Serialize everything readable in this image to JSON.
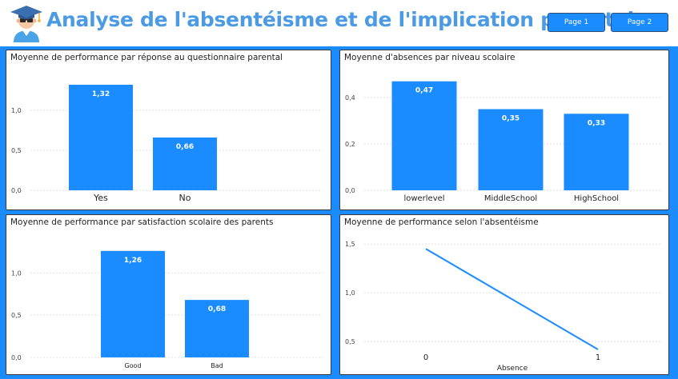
{
  "header": {
    "title": "Analyse de l'absentéisme et de l'implication parentale",
    "logo_icon": "graduate-student-icon",
    "buttons": [
      {
        "label": "Page 1"
      },
      {
        "label": "Page 2"
      }
    ]
  },
  "colors": {
    "accent": "#1a8cff",
    "title": "#4a9be4",
    "bar": "#1a8cff",
    "line": "#1a8cff",
    "gridline": "#e0e0e0"
  },
  "chart_data": [
    {
      "type": "bar",
      "title": "Moyenne de performance par réponse au questionnaire parental",
      "categories": [
        "Yes",
        "No"
      ],
      "values": [
        1.32,
        0.66
      ],
      "data_labels": [
        "1,32",
        "0,66"
      ],
      "yticks": [
        {
          "value": 0,
          "label": "0,0"
        },
        {
          "value": 0.5,
          "label": "0,5"
        },
        {
          "value": 1.0,
          "label": "1,0"
        }
      ],
      "ylim": [
        0,
        1.45
      ],
      "grid": true
    },
    {
      "type": "bar",
      "title": "Moyenne d'absences par niveau scolaire",
      "categories": [
        "lowerlevel",
        "MiddleSchool",
        "HighSchool"
      ],
      "values": [
        0.47,
        0.35,
        0.33
      ],
      "data_labels": [
        "0,47",
        "0,35",
        "0,33"
      ],
      "yticks": [
        {
          "value": 0,
          "label": "0,0"
        },
        {
          "value": 0.2,
          "label": "0,2"
        },
        {
          "value": 0.4,
          "label": "0,4"
        }
      ],
      "ylim": [
        0,
        0.5
      ],
      "grid": true
    },
    {
      "type": "bar",
      "title": "Moyenne de performance par satisfaction scolaire des parents",
      "categories": [
        "Good",
        "Bad"
      ],
      "values": [
        1.26,
        0.68
      ],
      "data_labels": [
        "1,26",
        "0,68"
      ],
      "yticks": [
        {
          "value": 0,
          "label": "0,0"
        },
        {
          "value": 0.5,
          "label": "0,5"
        },
        {
          "value": 1.0,
          "label": "1,0"
        }
      ],
      "ylim": [
        0,
        1.4
      ],
      "grid": true
    },
    {
      "type": "line",
      "title": "Moyenne de performance selon l'absentéisme",
      "xlabel": "Absence",
      "x": [
        0,
        1
      ],
      "xticks": [
        "0",
        "1"
      ],
      "values": [
        1.45,
        0.42
      ],
      "yticks": [
        {
          "value": 0.5,
          "label": "0,5"
        },
        {
          "value": 1.0,
          "label": "1,0"
        },
        {
          "value": 1.5,
          "label": "1,5"
        }
      ],
      "ylim": [
        0.42,
        1.55
      ],
      "grid": true
    }
  ]
}
